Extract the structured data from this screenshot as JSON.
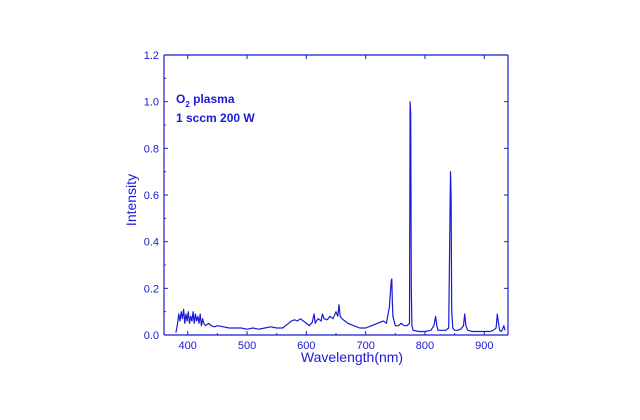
{
  "chart_data": {
    "type": "line",
    "xlabel": "Wavelength(nm)",
    "ylabel": "Intensity",
    "xlim": [
      360,
      940
    ],
    "ylim": [
      0,
      1.2
    ],
    "x_ticks": [
      400,
      500,
      600,
      700,
      800,
      900
    ],
    "y_ticks": [
      0.0,
      0.2,
      0.4,
      0.6,
      0.8,
      1.0,
      1.2
    ],
    "y_tick_labels": [
      "0.0",
      "0.2",
      "0.4",
      "0.6",
      "0.8",
      "1.0",
      "1.2"
    ],
    "annotation": {
      "line1_main": "O",
      "line1_sub": "2",
      "line1_rest": " plasma",
      "line2": "1 sccm 200 W"
    },
    "color": "#1a1ad6",
    "series": [
      {
        "x": [
          380,
          383,
          385,
          387,
          389,
          391,
          393,
          395,
          397,
          399,
          401,
          403,
          405,
          407,
          409,
          411,
          413,
          415,
          417,
          419,
          421,
          423,
          425,
          427,
          430,
          435,
          440,
          445,
          450,
          460,
          470,
          480,
          490,
          500,
          510,
          520,
          530,
          540,
          550,
          560,
          565,
          570,
          575,
          580,
          585,
          590,
          595,
          600,
          605,
          610,
          613,
          615,
          617,
          620,
          625,
          627,
          630,
          635,
          640,
          645,
          650,
          653,
          655,
          657,
          660,
          665,
          670,
          680,
          690,
          700,
          710,
          720,
          730,
          735,
          740,
          743,
          744,
          745,
          746,
          748,
          750,
          755,
          760,
          765,
          770,
          774,
          775,
          776,
          777,
          778,
          780,
          790,
          800,
          810,
          815,
          818,
          820,
          822,
          825,
          830,
          835,
          840,
          843,
          844,
          845,
          847,
          850,
          855,
          860,
          865,
          867,
          869,
          872,
          880,
          890,
          900,
          910,
          915,
          920,
          922,
          924,
          926,
          928,
          930,
          933,
          935
        ],
        "y": [
          0.01,
          0.05,
          0.09,
          0.06,
          0.1,
          0.07,
          0.11,
          0.05,
          0.09,
          0.06,
          0.1,
          0.05,
          0.08,
          0.06,
          0.1,
          0.05,
          0.09,
          0.06,
          0.08,
          0.05,
          0.09,
          0.04,
          0.07,
          0.05,
          0.04,
          0.05,
          0.04,
          0.035,
          0.04,
          0.035,
          0.03,
          0.03,
          0.03,
          0.025,
          0.03,
          0.025,
          0.03,
          0.035,
          0.03,
          0.03,
          0.04,
          0.05,
          0.06,
          0.065,
          0.06,
          0.07,
          0.06,
          0.05,
          0.04,
          0.055,
          0.09,
          0.05,
          0.06,
          0.07,
          0.06,
          0.09,
          0.07,
          0.065,
          0.08,
          0.07,
          0.1,
          0.08,
          0.13,
          0.08,
          0.07,
          0.06,
          0.05,
          0.04,
          0.03,
          0.03,
          0.04,
          0.05,
          0.06,
          0.05,
          0.12,
          0.23,
          0.24,
          0.15,
          0.08,
          0.06,
          0.04,
          0.04,
          0.05,
          0.04,
          0.04,
          0.05,
          1.0,
          0.95,
          0.2,
          0.04,
          0.02,
          0.015,
          0.015,
          0.02,
          0.04,
          0.08,
          0.04,
          0.02,
          0.02,
          0.02,
          0.02,
          0.03,
          0.7,
          0.6,
          0.1,
          0.03,
          0.02,
          0.02,
          0.025,
          0.04,
          0.09,
          0.04,
          0.02,
          0.015,
          0.015,
          0.015,
          0.015,
          0.02,
          0.03,
          0.09,
          0.05,
          0.02,
          0.015,
          0.02,
          0.04,
          0.02
        ]
      }
    ]
  }
}
